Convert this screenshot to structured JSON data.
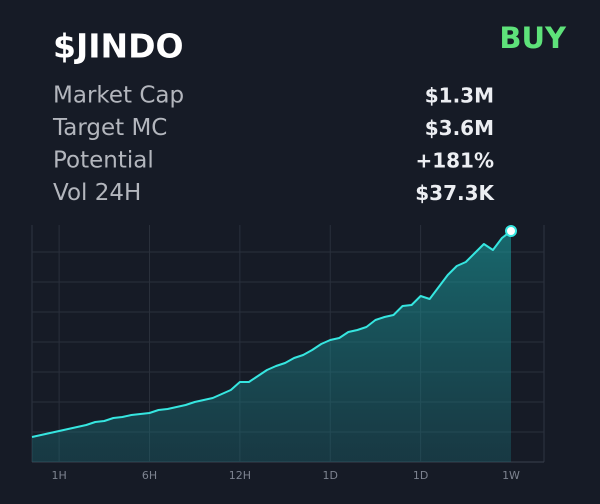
{
  "header": {
    "title": "$JINDO",
    "action": "BUY"
  },
  "stats": {
    "rows": [
      {
        "label": "Market Cap",
        "value": "$1.3M"
      },
      {
        "label": "Target MC",
        "value": "$3.6M"
      },
      {
        "label": "Potential",
        "value": "+181%",
        "color": "#2ecc71"
      },
      {
        "label": "Vol 24H",
        "value": "$37.3K"
      }
    ]
  },
  "chart_data": {
    "type": "area",
    "color": "#36e6e0",
    "grid": true,
    "categories": [
      null,
      null,
      null,
      "1H",
      null,
      null,
      null,
      null,
      null,
      null,
      null,
      null,
      null,
      "6H",
      null,
      null,
      null,
      null,
      null,
      null,
      null,
      null,
      null,
      "12H",
      null,
      null,
      null,
      null,
      null,
      null,
      null,
      null,
      null,
      "1D",
      null,
      null,
      null,
      null,
      null,
      null,
      null,
      null,
      null,
      "1D",
      null,
      null,
      null,
      null,
      null,
      null,
      null,
      null,
      null,
      "1W"
    ],
    "values": [
      25,
      27,
      29,
      31,
      33,
      35,
      37,
      40,
      41,
      44,
      45,
      47,
      48,
      49,
      52,
      53,
      55,
      57,
      60,
      62,
      64,
      68,
      72,
      80,
      80,
      86,
      92,
      96,
      99,
      104,
      107,
      112,
      118,
      122,
      124,
      130,
      132,
      135,
      142,
      145,
      147,
      156,
      157,
      166,
      163,
      175,
      187,
      196,
      200,
      209,
      218,
      212,
      224,
      231
    ],
    "ylim": [
      0,
      237
    ]
  }
}
